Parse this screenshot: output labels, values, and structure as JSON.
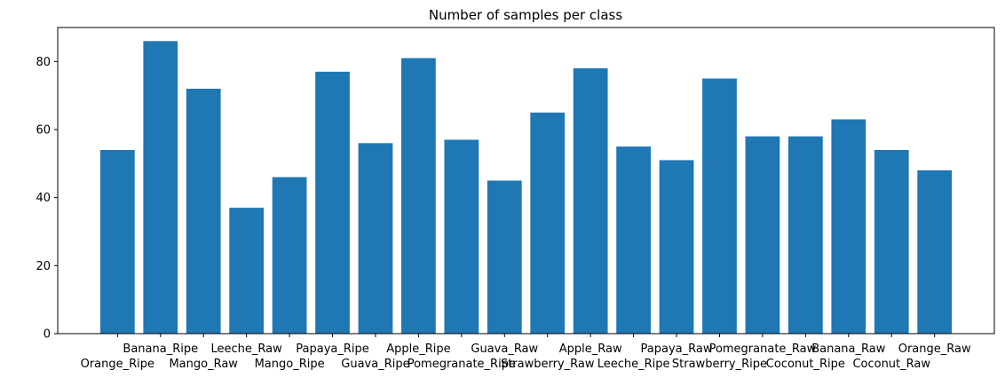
{
  "chart_data": {
    "type": "bar",
    "title": "Number of samples per class",
    "xlabel": "",
    "ylabel": "",
    "categories": [
      "Orange_Ripe",
      "Banana_Ripe",
      "Mango_Raw",
      "Leeche_Raw",
      "Mango_Ripe",
      "Papaya_Ripe",
      "Guava_Ripe",
      "Apple_Ripe",
      "Pomegranate_Ripe",
      "Guava_Raw",
      "Strawberry_Raw",
      "Apple_Raw",
      "Leeche_Ripe",
      "Papaya_Raw",
      "Strawberry_Ripe",
      "Pomegranate_Raw",
      "Coconut_Ripe",
      "Banana_Raw",
      "Coconut_Raw",
      "Orange_Raw"
    ],
    "values": [
      54,
      86,
      72,
      37,
      46,
      77,
      56,
      81,
      57,
      45,
      65,
      78,
      55,
      51,
      75,
      58,
      58,
      63,
      54,
      48
    ],
    "ylim": [
      0,
      90
    ],
    "yticks": [
      0,
      20,
      40,
      60,
      80
    ],
    "bar_color": "#1f77b4",
    "grid": false,
    "legend": "none"
  }
}
